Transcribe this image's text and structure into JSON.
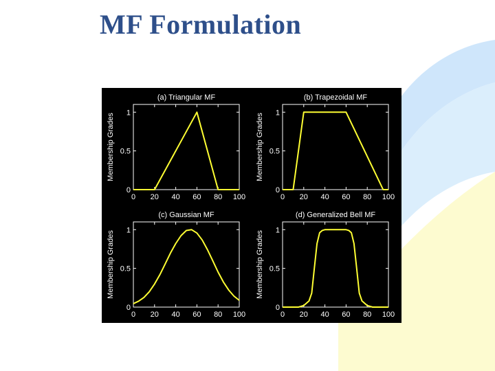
{
  "slide": {
    "title": "MF Formulation"
  },
  "colors": {
    "title": "#2e4f8a",
    "figure_bg": "#000000",
    "axes_fg": "#ffffff",
    "curve": "#ffff33",
    "deco_blue": "#cfe6fb",
    "deco_yellow": "#fdfbd0"
  },
  "chart_data": [
    {
      "type": "line",
      "title": "(a) Triangular MF",
      "ylabel": "Membership Grades",
      "xlabel": "",
      "xlim": [
        0,
        100
      ],
      "ylim": [
        0,
        1.1
      ],
      "xticks": [
        0,
        20,
        40,
        60,
        80,
        100
      ],
      "yticks": [
        0,
        0.5,
        1
      ],
      "ytick_labels": [
        "0",
        "0.5",
        "1"
      ],
      "grid": false,
      "series": [
        {
          "x": [
            0,
            20,
            60,
            80,
            100
          ],
          "y": [
            0,
            0,
            1,
            0,
            0
          ]
        }
      ]
    },
    {
      "type": "line",
      "title": "(b) Trapezoidal MF",
      "ylabel": "Membership Grades",
      "xlabel": "",
      "xlim": [
        0,
        100
      ],
      "ylim": [
        0,
        1.1
      ],
      "xticks": [
        0,
        20,
        40,
        60,
        80,
        100
      ],
      "yticks": [
        0,
        0.5,
        1
      ],
      "ytick_labels": [
        "0",
        "0.5",
        "1"
      ],
      "grid": false,
      "series": [
        {
          "x": [
            0,
            10,
            20,
            60,
            95,
            100
          ],
          "y": [
            0,
            0,
            1,
            1,
            0,
            0
          ]
        }
      ]
    },
    {
      "type": "line",
      "title": "(c) Gaussian MF",
      "ylabel": "Membership Grades",
      "xlabel": "",
      "xlim": [
        0,
        100
      ],
      "ylim": [
        0,
        1.1
      ],
      "xticks": [
        0,
        20,
        40,
        60,
        80,
        100
      ],
      "yticks": [
        0,
        0.5,
        1
      ],
      "ytick_labels": [
        "0",
        "0.5",
        "1"
      ],
      "grid": false,
      "series": [
        {
          "x": [
            0,
            5,
            10,
            15,
            20,
            25,
            30,
            35,
            40,
            45,
            50,
            55,
            60,
            65,
            70,
            75,
            80,
            85,
            90,
            95,
            100
          ],
          "y": [
            0.044,
            0.077,
            0.125,
            0.198,
            0.298,
            0.418,
            0.556,
            0.697,
            0.821,
            0.923,
            0.989,
            1.0,
            0.956,
            0.867,
            0.741,
            0.598,
            0.452,
            0.325,
            0.221,
            0.142,
            0.088
          ]
        }
      ]
    },
    {
      "type": "line",
      "title": "(d) Generalized Bell MF",
      "ylabel": "Membership Grades",
      "xlabel": "",
      "xlim": [
        0,
        100
      ],
      "ylim": [
        0,
        1.1
      ],
      "xticks": [
        0,
        20,
        40,
        60,
        80,
        100
      ],
      "yticks": [
        0,
        0.5,
        1
      ],
      "ytick_labels": [
        "0",
        "0.5",
        "1"
      ],
      "grid": false,
      "series": [
        {
          "x": [
            0,
            5,
            10,
            15,
            20,
            25,
            27.5,
            30,
            32.5,
            35,
            37.5,
            40,
            45,
            50,
            55,
            60,
            62.5,
            65,
            67.5,
            70,
            72.5,
            75,
            80,
            85,
            90,
            95,
            100
          ],
          "y": [
            0.0,
            0.0,
            0.0,
            0.0,
            0.02,
            0.08,
            0.18,
            0.5,
            0.82,
            0.96,
            0.99,
            1.0,
            1.0,
            1.0,
            1.0,
            1.0,
            0.99,
            0.96,
            0.82,
            0.5,
            0.18,
            0.08,
            0.02,
            0.0,
            0.0,
            0.0,
            0.0
          ]
        }
      ]
    }
  ]
}
